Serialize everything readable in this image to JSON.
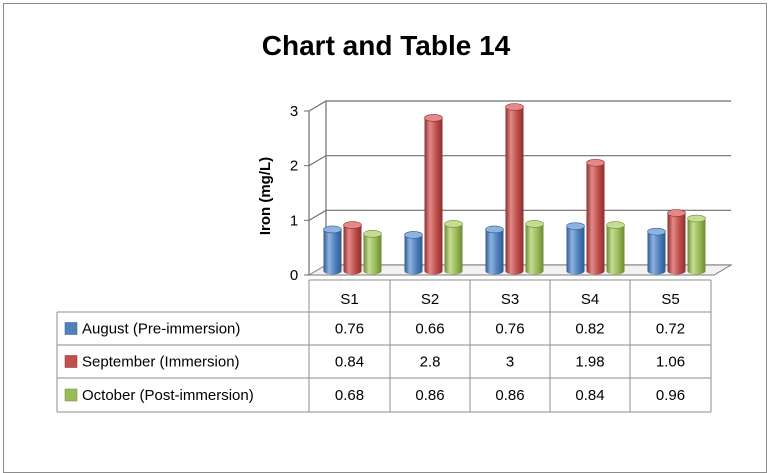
{
  "chart_data": {
    "type": "bar",
    "title": "Chart and Table 14",
    "ylabel": "Iron (mg/L)",
    "xlabel": "",
    "ylim": [
      0,
      3
    ],
    "yticks": [
      0,
      1,
      2,
      3
    ],
    "categories": [
      "S1",
      "S2",
      "S3",
      "S4",
      "S5"
    ],
    "grid": true,
    "style": "3d-cylinder",
    "legend": "data-table",
    "series": [
      {
        "name": "August (Pre-immersion)",
        "color": "#4f81bd",
        "light": "#8fb3e0",
        "dark": "#2f5a8f",
        "values": [
          0.76,
          0.66,
          0.76,
          0.82,
          0.72
        ],
        "labels": [
          "0.76",
          "0.66",
          "0.76",
          "0.82",
          "0.72"
        ]
      },
      {
        "name": "September (Immersion)",
        "color": "#c0504d",
        "light": "#e38a88",
        "dark": "#8c2e2c",
        "values": [
          0.84,
          2.8,
          3,
          1.98,
          1.06
        ],
        "labels": [
          "0.84",
          "2.8",
          "3",
          "1.98",
          "1.06"
        ]
      },
      {
        "name": "October (Post-immersion)",
        "color": "#9bbb59",
        "light": "#c6dc94",
        "dark": "#6c8a33",
        "values": [
          0.68,
          0.86,
          0.86,
          0.84,
          0.96
        ],
        "labels": [
          "0.68",
          "0.86",
          "0.86",
          "0.84",
          "0.96"
        ]
      }
    ]
  }
}
